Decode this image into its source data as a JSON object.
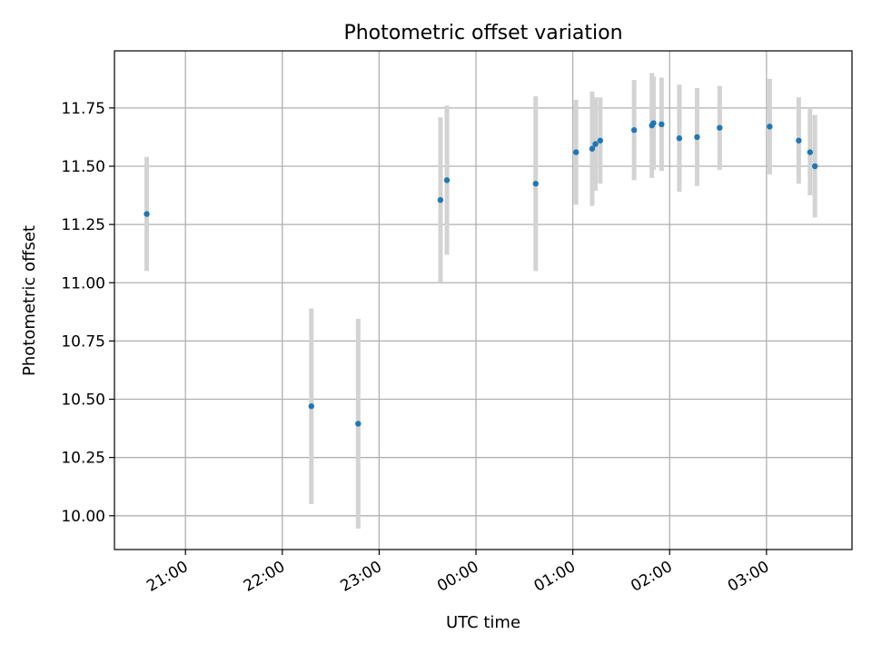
{
  "chart_data": {
    "type": "scatter",
    "title": "Photometric offset variation",
    "xlabel": "UTC time",
    "ylabel": "Photometric offset",
    "xlim": [
      "20:16",
      "27:53"
    ],
    "ylim": [
      9.855,
      11.995
    ],
    "xticks": [
      "21:00",
      "22:00",
      "23:00",
      "00:00",
      "01:00",
      "02:00",
      "03:00"
    ],
    "yticks": [
      "10.00",
      "10.25",
      "10.50",
      "10.75",
      "11.00",
      "11.25",
      "11.50",
      "11.75"
    ],
    "grid": true,
    "colors": {
      "point": "#1f77b4",
      "errorbar": "#d3d3d3",
      "grid": "#b0b0b0"
    },
    "points": [
      {
        "time": "20:36",
        "y": 11.295,
        "err": 0.245
      },
      {
        "time": "22:18",
        "y": 10.47,
        "err": 0.42
      },
      {
        "time": "22:47",
        "y": 10.395,
        "err": 0.45
      },
      {
        "time": "23:38",
        "y": 11.355,
        "err": 0.355
      },
      {
        "time": "23:42",
        "y": 11.44,
        "err": 0.32
      },
      {
        "time": "00:37",
        "y": 11.425,
        "err": 0.375
      },
      {
        "time": "01:02",
        "y": 11.56,
        "err": 0.225
      },
      {
        "time": "01:12",
        "y": 11.575,
        "err": 0.245
      },
      {
        "time": "01:14",
        "y": 11.595,
        "err": 0.2
      },
      {
        "time": "01:17",
        "y": 11.61,
        "err": 0.185
      },
      {
        "time": "01:38",
        "y": 11.655,
        "err": 0.215
      },
      {
        "time": "01:49",
        "y": 11.675,
        "err": 0.225
      },
      {
        "time": "01:50",
        "y": 11.685,
        "err": 0.2
      },
      {
        "time": "01:55",
        "y": 11.68,
        "err": 0.2
      },
      {
        "time": "02:06",
        "y": 11.62,
        "err": 0.23
      },
      {
        "time": "02:17",
        "y": 11.625,
        "err": 0.21
      },
      {
        "time": "02:31",
        "y": 11.665,
        "err": 0.18
      },
      {
        "time": "03:02",
        "y": 11.67,
        "err": 0.205
      },
      {
        "time": "03:20",
        "y": 11.61,
        "err": 0.185
      },
      {
        "time": "03:27",
        "y": 11.56,
        "err": 0.185
      },
      {
        "time": "03:30",
        "y": 11.5,
        "err": 0.22
      }
    ]
  }
}
